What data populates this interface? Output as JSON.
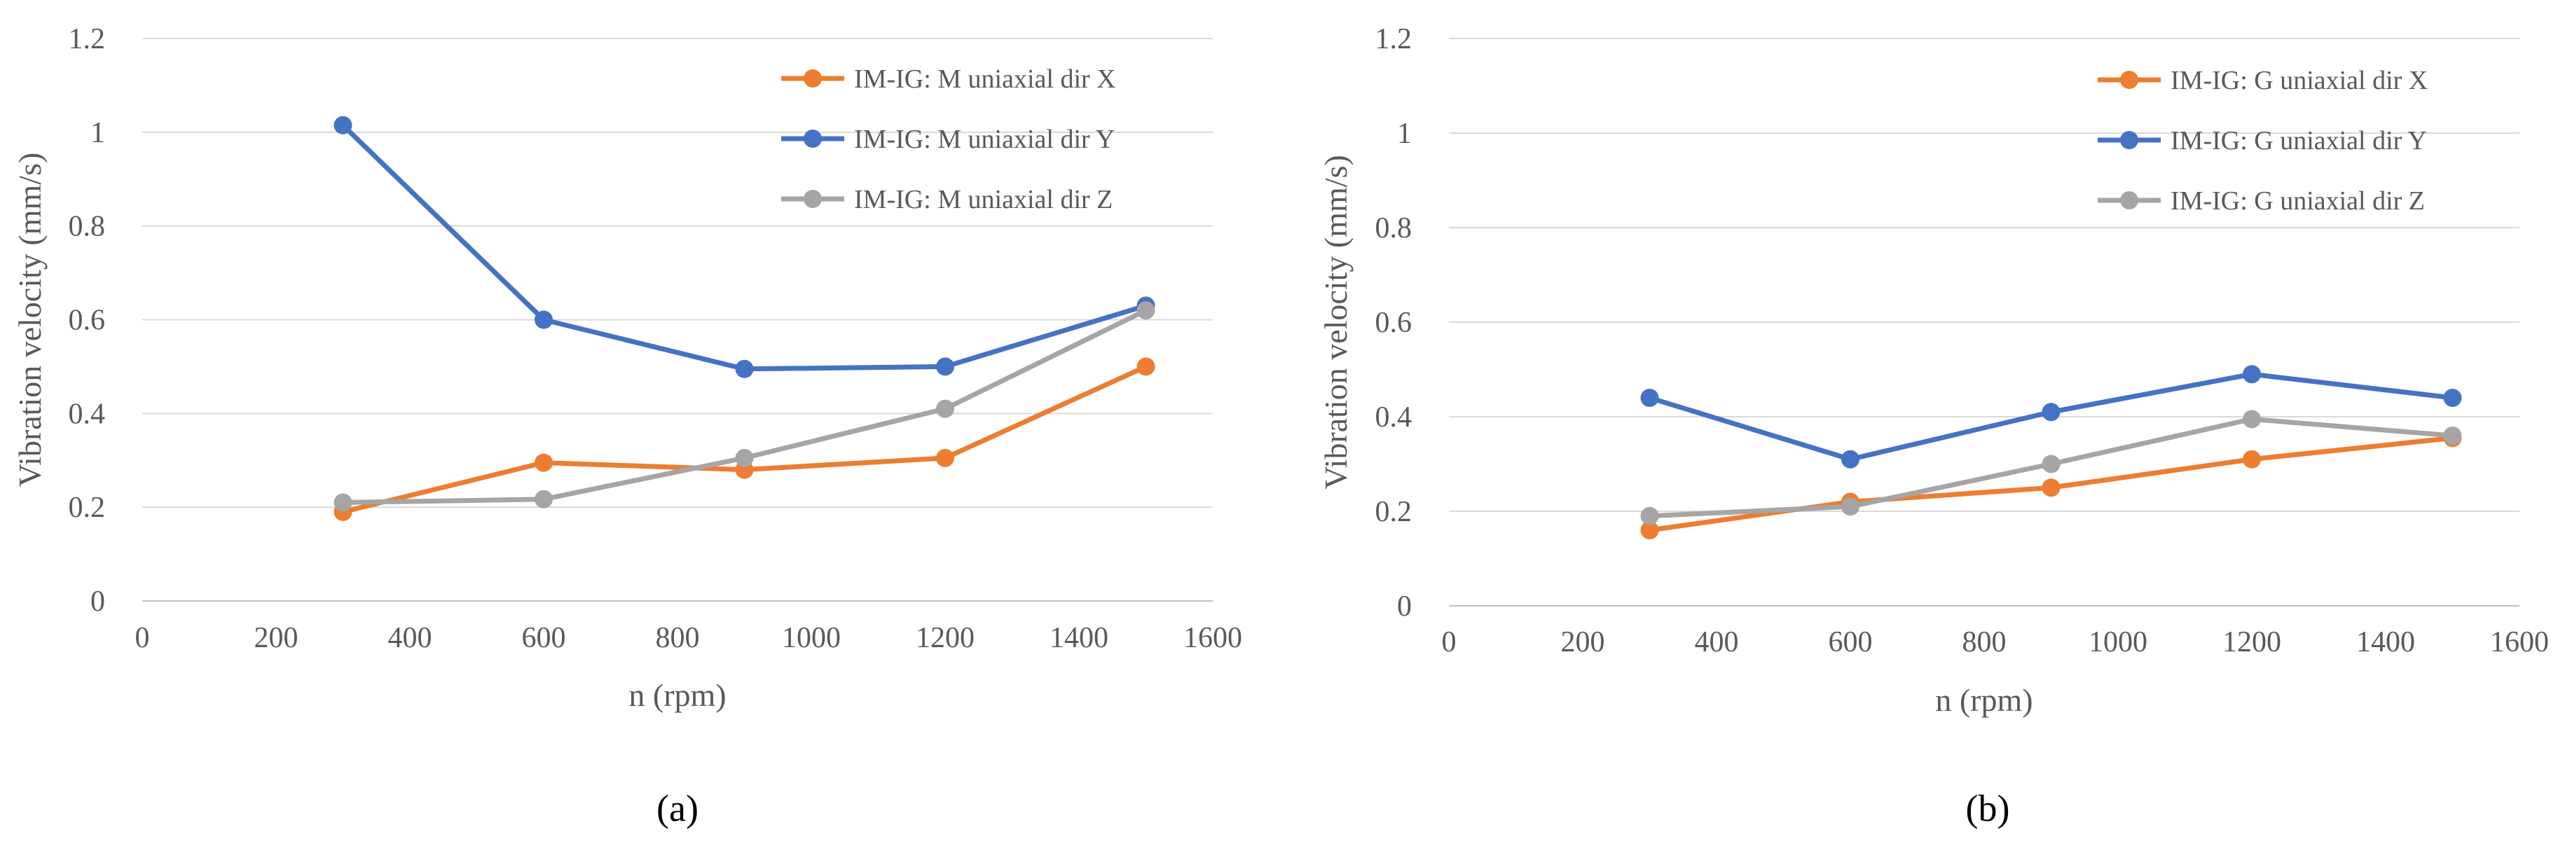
{
  "chart_data": [
    {
      "type": "line",
      "caption": "(a)",
      "title": "",
      "xlabel": "n (rpm)",
      "ylabel": "Vibration velocity (mm/s)",
      "xlim": [
        0,
        1600
      ],
      "ylim": [
        0,
        1.2
      ],
      "xticks": [
        "0",
        "200",
        "400",
        "600",
        "800",
        "1000",
        "1200",
        "1400",
        "1600"
      ],
      "yticks": [
        "0",
        "0.2",
        "0.4",
        "0.6",
        "0.8",
        "1",
        "1.2"
      ],
      "x": [
        300,
        600,
        900,
        1200,
        1500
      ],
      "series": [
        {
          "name": "IM-IG: M uniaxial dir X",
          "color": "#ED7D31",
          "values": [
            0.19,
            0.295,
            0.28,
            0.305,
            0.5
          ]
        },
        {
          "name": "IM-IG: M uniaxial dir Y",
          "color": "#4472C4",
          "values": [
            1.015,
            0.6,
            0.495,
            0.5,
            0.63
          ]
        },
        {
          "name": "IM-IG: M uniaxial dir Z",
          "color": "#A5A5A5",
          "values": [
            0.21,
            0.217,
            0.305,
            0.41,
            0.62
          ]
        }
      ],
      "legend": "top-right",
      "grid": true
    },
    {
      "type": "line",
      "caption": "(b)",
      "title": "",
      "xlabel": "n (rpm)",
      "ylabel": "Vibration velocity (mm/s)",
      "xlim": [
        0,
        1600
      ],
      "ylim": [
        0,
        1.2
      ],
      "xticks": [
        "0",
        "200",
        "400",
        "600",
        "800",
        "1000",
        "1200",
        "1400",
        "1600"
      ],
      "yticks": [
        "0",
        "0.2",
        "0.4",
        "0.6",
        "0.8",
        "1",
        "1.2"
      ],
      "x": [
        300,
        600,
        900,
        1200,
        1500
      ],
      "series": [
        {
          "name": "IM-IG: G uniaxial dir X",
          "color": "#ED7D31",
          "values": [
            0.16,
            0.22,
            0.25,
            0.31,
            0.355
          ]
        },
        {
          "name": "IM-IG: G uniaxial dir Y",
          "color": "#4472C4",
          "values": [
            0.44,
            0.31,
            0.41,
            0.49,
            0.44
          ]
        },
        {
          "name": "IM-IG: G uniaxial dir Z",
          "color": "#A5A5A5",
          "values": [
            0.19,
            0.21,
            0.3,
            0.395,
            0.36
          ]
        }
      ],
      "legend": "top-right",
      "grid": true
    }
  ]
}
